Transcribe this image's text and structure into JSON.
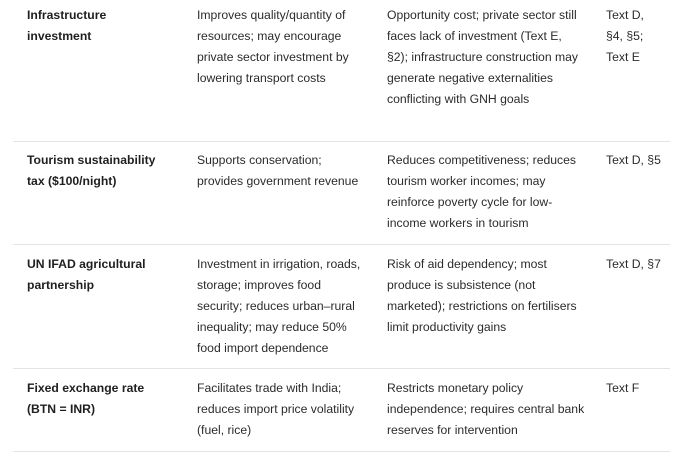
{
  "rows": [
    {
      "policy": "Infrastructure investment",
      "advantages": "Improves quality/quantity of resources; may encourage private sector investment by lowering transport costs",
      "disadvantages": "Opportunity cost; private sector still faces lack of investment (Text E, §2); infrastructure construction may generate negative externalities conflicting with GNH goals",
      "source": "Text D, §4, §5; Text E"
    },
    {
      "policy": "Tourism sustainability tax ($100/night)",
      "advantages": "Supports conservation; provides government revenue",
      "disadvantages": "Reduces competitiveness; reduces tourism worker incomes; may reinforce poverty cycle for low-income workers in tourism",
      "source": "Text D, §5"
    },
    {
      "policy": "UN IFAD agricultural partnership",
      "advantages": "Investment in irrigation, roads, storage; improves food security; reduces urban–rural inequality; may reduce 50% food import dependence",
      "disadvantages": "Risk of aid dependency; most produce is subsistence (not marketed); restrictions on fertilisers limit productivity gains",
      "source": "Text D, §7"
    },
    {
      "policy": "Fixed exchange rate (BTN = INR)",
      "advantages": "Facilitates trade with India; reduces import price volatility (fuel, rice)",
      "disadvantages": "Restricts monetary policy independence; requires central bank reserves for intervention",
      "source": "Text F"
    }
  ]
}
